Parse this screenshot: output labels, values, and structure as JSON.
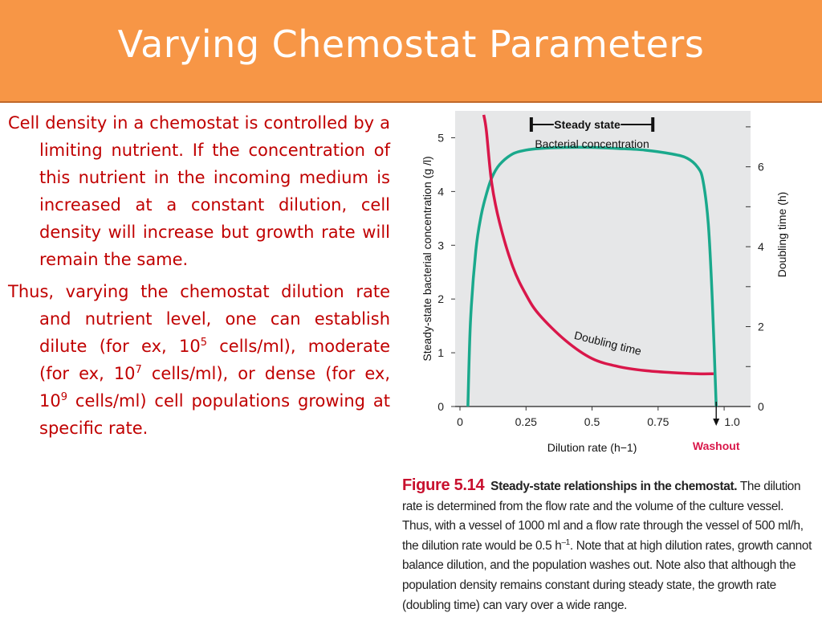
{
  "slide": {
    "title": "Varying Chemostat Parameters",
    "paragraph1": {
      "text": "Cell density in a chemostat is controlled by a limiting nutrient. If the concentration of this nutrient in the incoming medium is increased at a constant dilution, cell density will increase but growth rate will remain the same."
    },
    "paragraph2": {
      "intro": "Thus, varying the chemostat dilution rate and nutrient level, one can establish dilute (for ex, 10",
      "exp1": "5",
      "mid1": " cells/ml), moderate (for ex, 10",
      "exp2": "7",
      "mid2": " cells/ml), or dense (for ex, 10",
      "exp3": "9",
      "outro": " cells/ml) cell populations growing at specific rate."
    }
  },
  "figure": {
    "number": "Figure 5.14",
    "title": "Steady-state relationships in the chemostat.",
    "caption_a": " The dilution rate is determined from the flow rate and the volume of the culture vessel. Thus, with a vessel of 1000 ml and a flow rate through the vessel of 500 ml/h, the dilution rate would be 0.5 h",
    "caption_sup": "–1",
    "caption_b": ". Note that at high dilution rates, growth cannot balance dilution, and the population washes out. Note also that although the population density remains constant during steady state, the growth rate (doubling time) can vary over a wide range."
  },
  "colors": {
    "header_bg": "#f79646",
    "body_text": "#c00000",
    "bacterial_series": "#1aa98c",
    "doubling_series": "#d9174a",
    "washout": "#d9174a",
    "plot_bg": "#e6e7e8"
  },
  "chart_data": {
    "type": "line",
    "title": "",
    "xlabel": "Dilution rate (h−1)",
    "ylabel": "Steady-state bacterial concentration (g /l)",
    "y2label": "Doubling time (h)",
    "xlim": [
      0,
      1.1
    ],
    "ylim": [
      0,
      5.5
    ],
    "y2lim": [
      0,
      7.4
    ],
    "x_ticks": [
      0,
      0.25,
      0.5,
      0.75,
      1.0
    ],
    "x_tick_labels": [
      "0",
      "0.25",
      "0.5",
      "0.75",
      "1.0"
    ],
    "y_ticks": [
      0,
      1,
      2,
      3,
      4,
      5
    ],
    "y_tick_labels": [
      "0",
      "1",
      "2",
      "3",
      "4",
      "5"
    ],
    "y2_ticks": [
      0,
      2,
      4,
      6
    ],
    "y2_tick_labels": [
      "0",
      "2",
      "4",
      "6"
    ],
    "series": [
      {
        "name": "Bacterial concentration",
        "axis": "left",
        "x": [
          0.03,
          0.04,
          0.06,
          0.08,
          0.1,
          0.12,
          0.15,
          0.2,
          0.25,
          0.3,
          0.4,
          0.5,
          0.6,
          0.7,
          0.8,
          0.86,
          0.9,
          0.92,
          0.94,
          0.955,
          0.97
        ],
        "values": [
          0,
          1.6,
          2.9,
          3.55,
          3.95,
          4.25,
          4.5,
          4.7,
          4.77,
          4.8,
          4.82,
          4.82,
          4.8,
          4.77,
          4.7,
          4.62,
          4.45,
          4.2,
          3.4,
          2.0,
          0
        ]
      },
      {
        "name": "Doubling time",
        "axis": "right",
        "x": [
          0.09,
          0.1,
          0.12,
          0.15,
          0.2,
          0.25,
          0.3,
          0.4,
          0.5,
          0.6,
          0.7,
          0.8,
          0.9,
          0.96
        ],
        "values": [
          7.3,
          6.9,
          5.6,
          4.6,
          3.5,
          2.8,
          2.3,
          1.65,
          1.2,
          1.0,
          0.9,
          0.85,
          0.82,
          0.82
        ]
      }
    ],
    "annotations": {
      "steady_state": "Steady state",
      "steady_state_range": [
        0.27,
        0.73
      ],
      "bacterial_label": "Bacterial concentration",
      "doubling_label": "Doubling time",
      "washout": "Washout",
      "washout_x": 0.97
    }
  }
}
